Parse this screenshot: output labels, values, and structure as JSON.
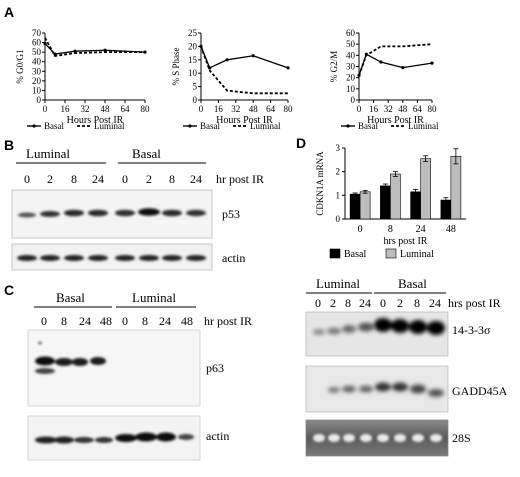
{
  "panels": {
    "A": "A",
    "B": "B",
    "C": "C",
    "D": "D"
  },
  "chart_data": [
    {
      "type": "line",
      "panel": "A",
      "ylabel": "% G0/G1",
      "xlabel": "Hours Post IR",
      "xlim": [
        0,
        80
      ],
      "ylim": [
        0,
        70
      ],
      "xticks": [
        0,
        16,
        32,
        48,
        64,
        80
      ],
      "yticks": [
        0,
        10,
        20,
        30,
        40,
        50,
        60,
        70
      ],
      "legend": "bottom",
      "series": [
        {
          "name": "Basal",
          "dash": "solid",
          "x": [
            0,
            8,
            24,
            48,
            80
          ],
          "y": [
            59,
            48,
            51,
            52,
            50
          ]
        },
        {
          "name": "Luminal",
          "dash": "dashed",
          "x": [
            0,
            8,
            24,
            48,
            80
          ],
          "y": [
            65,
            46,
            49,
            50,
            50
          ]
        }
      ]
    },
    {
      "type": "line",
      "panel": "A",
      "ylabel": "% S Phase",
      "xlabel": "Hours Post IR",
      "xlim": [
        0,
        80
      ],
      "ylim": [
        0,
        25
      ],
      "xticks": [
        0,
        16,
        32,
        48,
        64,
        80
      ],
      "yticks": [
        0,
        5,
        10,
        15,
        20,
        25
      ],
      "legend": "bottom",
      "series": [
        {
          "name": "Basal",
          "dash": "solid",
          "x": [
            0,
            8,
            24,
            48,
            80
          ],
          "y": [
            20,
            12,
            15,
            16.5,
            12
          ]
        },
        {
          "name": "Luminal",
          "dash": "dashed",
          "x": [
            0,
            8,
            24,
            48,
            80
          ],
          "y": [
            20,
            11,
            3.5,
            2.5,
            2.5
          ]
        }
      ]
    },
    {
      "type": "line",
      "panel": "A",
      "ylabel": "% G2/M",
      "xlabel": "Hours Post IR",
      "xlim": [
        0,
        80
      ],
      "ylim": [
        0,
        60
      ],
      "xticks": [
        0,
        16,
        32,
        48,
        64,
        80
      ],
      "yticks": [
        0,
        10,
        20,
        30,
        40,
        50,
        60
      ],
      "legend": "bottom",
      "series": [
        {
          "name": "Basal",
          "dash": "solid",
          "x": [
            0,
            8,
            24,
            48,
            80
          ],
          "y": [
            22,
            41,
            34,
            29,
            33
          ]
        },
        {
          "name": "Luminal",
          "dash": "dashed",
          "x": [
            0,
            8,
            24,
            48,
            80
          ],
          "y": [
            22,
            40,
            48,
            48,
            50
          ]
        }
      ]
    },
    {
      "type": "bar",
      "panel": "D",
      "ylabel": "CDKN1A mRNA",
      "xlabel": "hrs post IR",
      "categories": [
        "0",
        "8",
        "24",
        "48"
      ],
      "ylim": [
        0,
        3
      ],
      "yticks": [
        0,
        1,
        2,
        3
      ],
      "legend": "bottom",
      "series": [
        {
          "name": "Basal",
          "color": "#000000",
          "values": [
            1.05,
            1.4,
            1.15,
            0.8
          ],
          "errors": [
            0.05,
            0.08,
            0.1,
            0.1
          ]
        },
        {
          "name": "Luminal",
          "color": "#bdbdbd",
          "values": [
            1.15,
            1.9,
            2.55,
            2.65
          ],
          "errors": [
            0.06,
            0.1,
            0.12,
            0.32
          ]
        }
      ]
    }
  ],
  "blots": {
    "B": {
      "groups": [
        "Luminal",
        "Basal"
      ],
      "lanes": [
        "0",
        "2",
        "8",
        "24",
        "0",
        "2",
        "8",
        "24"
      ],
      "lane_caption": "hr post IR",
      "bands": [
        "p53",
        "actin"
      ]
    },
    "C": {
      "groups": [
        "Basal",
        "Luminal"
      ],
      "lanes": [
        "0",
        "8",
        "24",
        "48",
        "0",
        "8",
        "24",
        "48"
      ],
      "lane_caption": "hr post IR",
      "bands": [
        "p63",
        "actin"
      ]
    },
    "D": {
      "groups": [
        "Luminal",
        "Basal"
      ],
      "lanes": [
        "0",
        "2",
        "8",
        "24",
        "0",
        "2",
        "8",
        "24"
      ],
      "lane_caption": "hrs post IR",
      "bands": [
        "14-3-3σ",
        "GADD45A",
        "28S"
      ]
    }
  }
}
